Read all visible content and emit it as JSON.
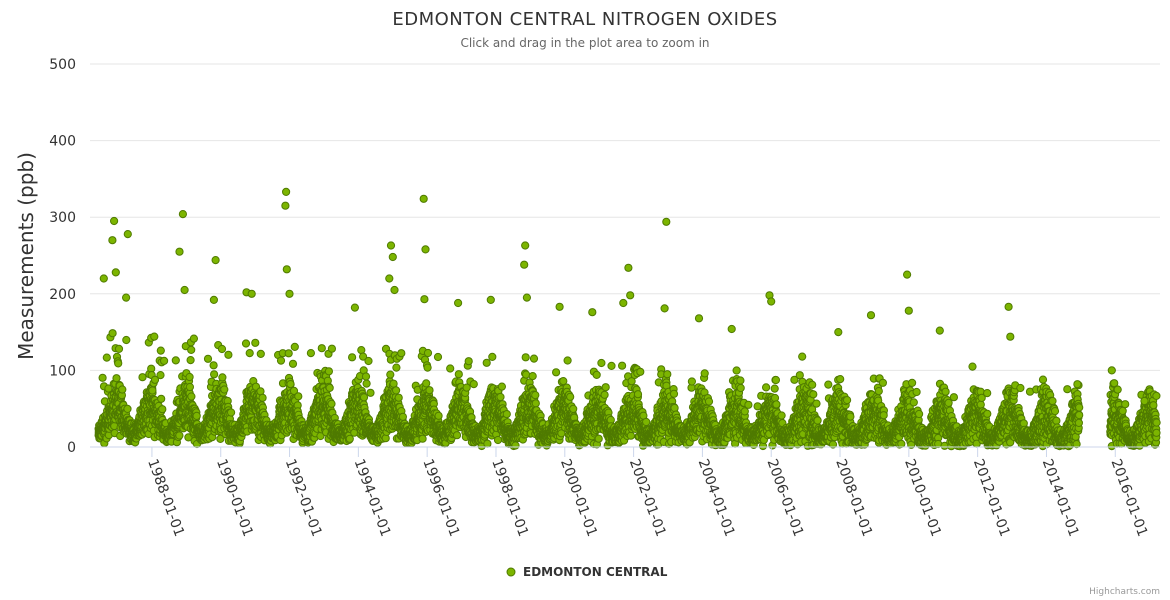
{
  "chart_data": {
    "type": "scatter",
    "title": "EDMONTON CENTRAL NITROGEN OXIDES",
    "subtitle": "Click and drag in the plot area to zoom in",
    "ylabel": "Measurements (ppb)",
    "xlabel": "",
    "ylim": [
      0,
      500
    ],
    "yticks": [
      "0",
      "100",
      "200",
      "300",
      "400",
      "500"
    ],
    "ytick_values": [
      0,
      100,
      200,
      300,
      400,
      500
    ],
    "xlim": [
      1986.2,
      2017.3
    ],
    "xticks": [
      "1988-01-01",
      "1990-01-01",
      "1992-01-01",
      "1994-01-01",
      "1996-01-01",
      "1998-01-01",
      "2000-01-01",
      "2002-01-01",
      "2004-01-01",
      "2006-01-01",
      "2008-01-01",
      "2010-01-01",
      "2012-01-01",
      "2014-01-01",
      "2016-01-01"
    ],
    "xtick_values": [
      1988,
      1990,
      1992,
      1994,
      1996,
      1998,
      2000,
      2002,
      2004,
      2006,
      2008,
      2010,
      2012,
      2014,
      2016
    ],
    "data_gap": [
      2014.95,
      2015.85
    ],
    "series": [
      {
        "name": "EDMONTON CENTRAL",
        "color": "#7cb500",
        "outline": "#4f7a00",
        "peaks": [
          {
            "x": 1986.9,
            "y": 295
          },
          {
            "x": 1986.85,
            "y": 270
          },
          {
            "x": 1986.95,
            "y": 228
          },
          {
            "x": 1986.6,
            "y": 220
          },
          {
            "x": 1987.3,
            "y": 278
          },
          {
            "x": 1987.25,
            "y": 195
          },
          {
            "x": 1988.9,
            "y": 304
          },
          {
            "x": 1988.8,
            "y": 255
          },
          {
            "x": 1988.95,
            "y": 205
          },
          {
            "x": 1989.85,
            "y": 244
          },
          {
            "x": 1989.8,
            "y": 192
          },
          {
            "x": 1990.75,
            "y": 202
          },
          {
            "x": 1990.9,
            "y": 200
          },
          {
            "x": 1991.9,
            "y": 333
          },
          {
            "x": 1991.88,
            "y": 315
          },
          {
            "x": 1991.92,
            "y": 232
          },
          {
            "x": 1992.0,
            "y": 200
          },
          {
            "x": 1993.9,
            "y": 182
          },
          {
            "x": 1994.95,
            "y": 263
          },
          {
            "x": 1995.0,
            "y": 248
          },
          {
            "x": 1994.9,
            "y": 220
          },
          {
            "x": 1995.05,
            "y": 205
          },
          {
            "x": 1995.9,
            "y": 324
          },
          {
            "x": 1995.95,
            "y": 258
          },
          {
            "x": 1995.92,
            "y": 193
          },
          {
            "x": 1996.9,
            "y": 188
          },
          {
            "x": 1997.85,
            "y": 192
          },
          {
            "x": 1998.85,
            "y": 263
          },
          {
            "x": 1998.82,
            "y": 238
          },
          {
            "x": 1998.9,
            "y": 195
          },
          {
            "x": 1999.85,
            "y": 183
          },
          {
            "x": 2000.8,
            "y": 176
          },
          {
            "x": 2001.85,
            "y": 234
          },
          {
            "x": 2001.9,
            "y": 198
          },
          {
            "x": 2001.7,
            "y": 188
          },
          {
            "x": 2002.95,
            "y": 294
          },
          {
            "x": 2002.9,
            "y": 181
          },
          {
            "x": 2003.9,
            "y": 168
          },
          {
            "x": 2004.85,
            "y": 154
          },
          {
            "x": 2005.95,
            "y": 198
          },
          {
            "x": 2006.0,
            "y": 190
          },
          {
            "x": 2006.9,
            "y": 118
          },
          {
            "x": 2007.95,
            "y": 150
          },
          {
            "x": 2008.9,
            "y": 172
          },
          {
            "x": 2009.95,
            "y": 225
          },
          {
            "x": 2010.0,
            "y": 178
          },
          {
            "x": 2010.9,
            "y": 152
          },
          {
            "x": 2011.85,
            "y": 105
          },
          {
            "x": 2012.9,
            "y": 183
          },
          {
            "x": 2012.95,
            "y": 144
          },
          {
            "x": 2013.9,
            "y": 88
          },
          {
            "x": 2014.9,
            "y": 82
          },
          {
            "x": 2015.9,
            "y": 100
          },
          {
            "x": 2016.85,
            "y": 60
          }
        ],
        "seasonal_profile": {
          "winter_mean_start": 55,
          "winter_mean_end": 40,
          "summer_mean_start": 18,
          "summer_mean_end": 10,
          "winter_peak_start": 150,
          "winter_peak_end": 70
        }
      }
    ],
    "legend": {
      "position": "bottom-center",
      "entries": [
        "EDMONTON CENTRAL"
      ]
    }
  },
  "credits": "Highcharts.com"
}
